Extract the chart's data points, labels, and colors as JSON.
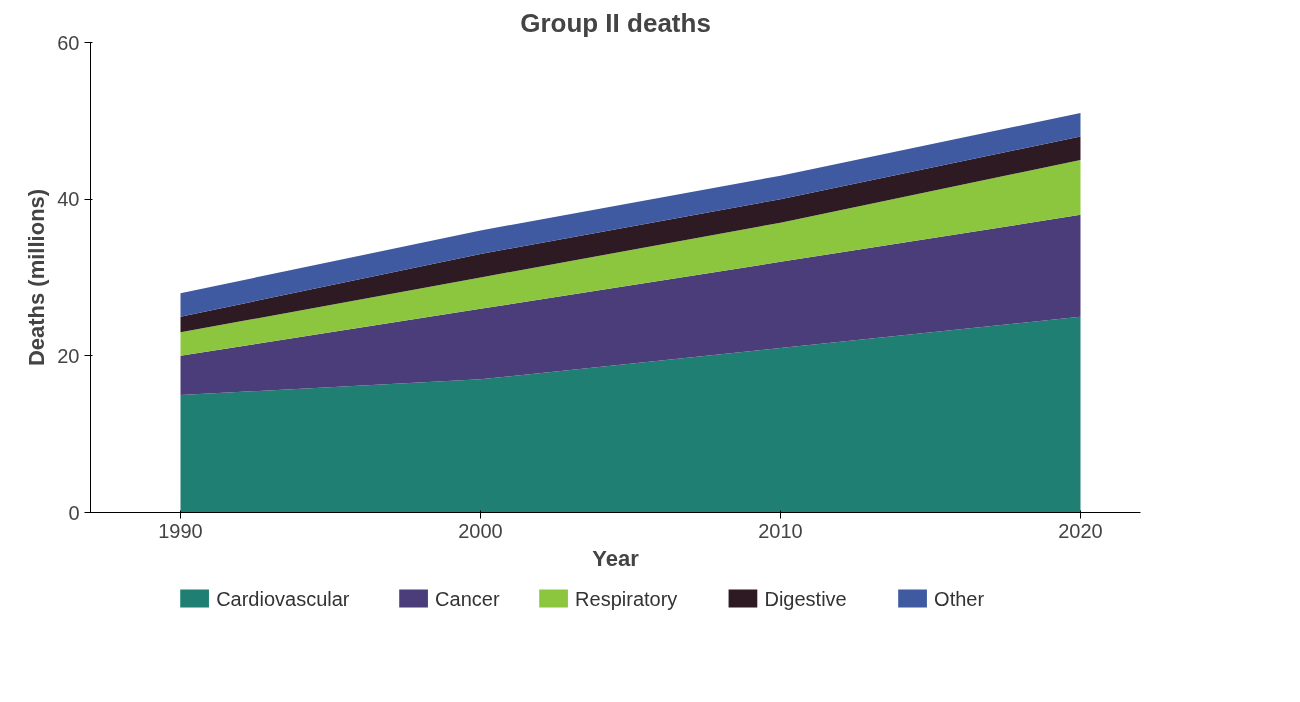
{
  "chart_data": {
    "type": "area",
    "stacked": true,
    "title": "Group II deaths",
    "xlabel": "Year",
    "ylabel": "Deaths (millions)",
    "x": [
      1990,
      2000,
      2010,
      2020
    ],
    "series": [
      {
        "name": "Cardiovascular",
        "color": "#1f7f72",
        "values": [
          15,
          17,
          21,
          25
        ]
      },
      {
        "name": "Cancer",
        "color": "#4b3d7a",
        "values": [
          5,
          9,
          11,
          13
        ]
      },
      {
        "name": "Respiratory",
        "color": "#8cc63f",
        "values": [
          3,
          4,
          5,
          7
        ]
      },
      {
        "name": "Digestive",
        "color": "#2e1a22",
        "values": [
          2,
          3,
          3,
          3
        ]
      },
      {
        "name": "Other",
        "color": "#3f5aa0",
        "values": [
          3,
          3,
          3,
          3
        ]
      }
    ],
    "xlim": [
      1987,
      2022
    ],
    "ylim": [
      0,
      60
    ],
    "xticks": [
      1990,
      2000,
      2010,
      2020
    ],
    "yticks": [
      0,
      20,
      40,
      60
    ],
    "grid": false,
    "legend": "bottom"
  }
}
